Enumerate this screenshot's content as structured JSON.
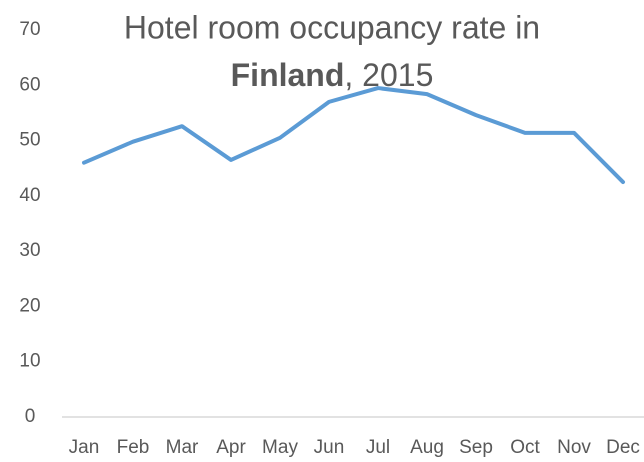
{
  "chart_data": {
    "type": "line",
    "title": [
      "Hotel room occupancy rate in",
      "Finland",
      ", 2015"
    ],
    "categories": [
      "Jan",
      "Feb",
      "Mar",
      "Apr",
      "May",
      "Jun",
      "Jul",
      "Aug",
      "Sep",
      "Oct",
      "Nov",
      "Dec"
    ],
    "values": [
      46,
      49.8,
      52.6,
      46.5,
      50.5,
      57,
      59.5,
      58.4,
      54.6,
      51.4,
      51.4,
      42.5
    ],
    "color": "#5b9bd5",
    "ylim": [
      0,
      70
    ],
    "yticks": [
      0,
      10,
      20,
      30,
      40,
      50,
      60,
      70
    ],
    "grid": false
  }
}
